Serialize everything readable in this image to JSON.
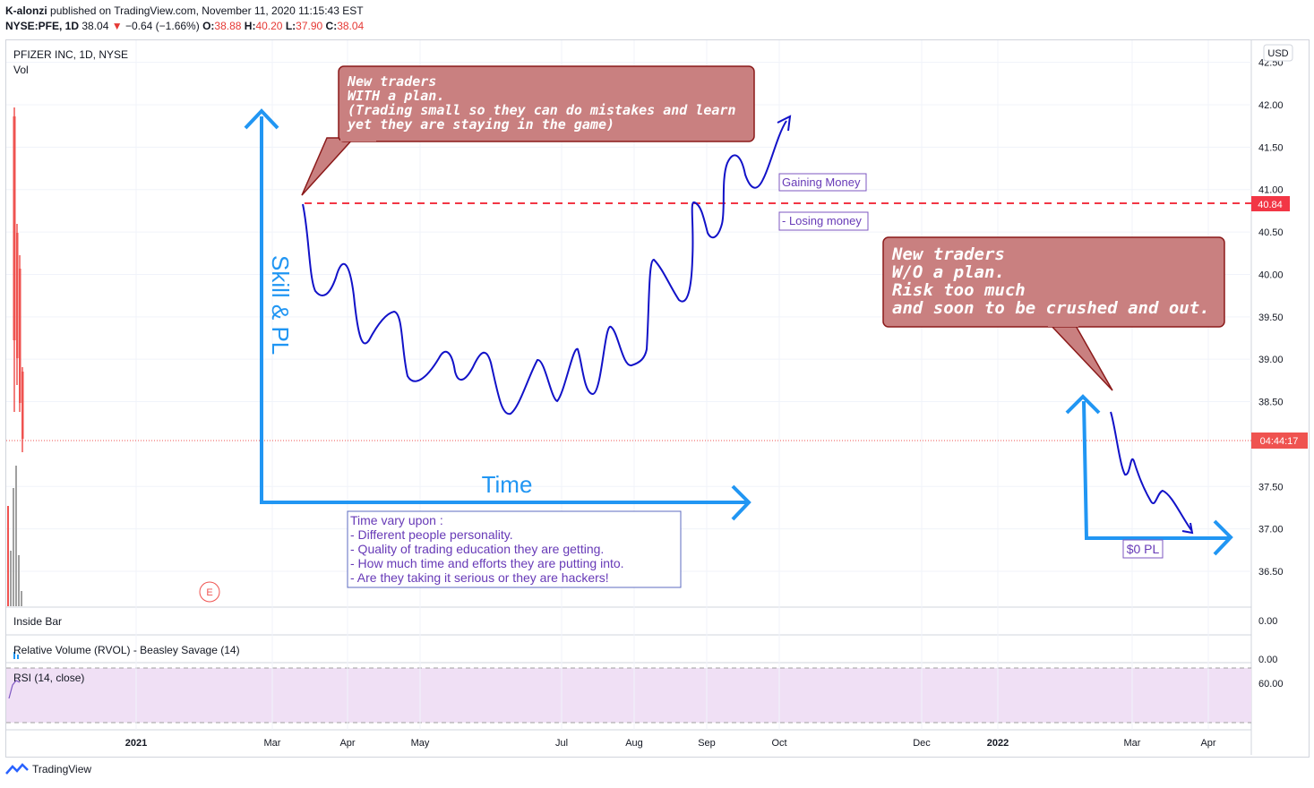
{
  "header": {
    "publisher": "K-alonzi",
    "published_text": "published on TradingView.com, November 11, 2020 11:15:43 EST",
    "symbol": "NYSE:PFE, 1D",
    "last": "38.04",
    "change": "−0.64 (−1.66%)",
    "o_label": "O:",
    "o": "38.88",
    "h_label": "H:",
    "h": "40.20",
    "l_label": "L:",
    "l": "37.90",
    "c_label": "C:",
    "c": "38.04"
  },
  "chart_data": {
    "type": "line",
    "title": "PFIZER INC, 1D, NYSE",
    "volume_label": "Vol",
    "currency": "USD",
    "y_ticks": [
      "42.50",
      "42.00",
      "41.50",
      "41.00",
      "40.50",
      "40.00",
      "39.50",
      "39.00",
      "38.50",
      "37.50",
      "37.00",
      "36.50"
    ],
    "x_ticks": [
      "2021",
      "Mar",
      "Apr",
      "May",
      "Jul",
      "Aug",
      "Sep",
      "Oct",
      "Dec",
      "2022",
      "Mar",
      "Apr"
    ],
    "price_line": "40.84",
    "countdown": "04:44:17",
    "earnings_marker": "E",
    "indicators": [
      {
        "name": "Inside Bar",
        "value": "0.00"
      },
      {
        "name": "Relative Volume (RVOL) - Beasley Savage (14)",
        "value": "0.00"
      },
      {
        "name": "RSI (14, close)",
        "value": "60.00"
      }
    ],
    "annotations": {
      "callout_plan": [
        "New traders",
        "WITH a plan.",
        "(Trading small so they can do mistakes and learn",
        "yet they are staying in the game)"
      ],
      "callout_noplan": [
        "New traders",
        "W/O a plan.",
        "Risk too much",
        "and soon to be crushed and out."
      ],
      "gaining": "Gaining Money",
      "losing": "- Losing money",
      "y_axis_label": "Skill & PL",
      "x_axis_label": "Time",
      "zero_pl": "$0 PL",
      "time_note": [
        "Time vary upon :",
        "- Different people personality.",
        "- Quality of trading education they are getting.",
        "- How much time and efforts they are putting into.",
        "- Are they taking it serious or they are hackers!"
      ]
    }
  },
  "footer": {
    "brand": "TradingView"
  },
  "colors": {
    "up": "#26a69a",
    "down": "#ef5350",
    "callout": "#c98080",
    "drawn_line": "#1212c8",
    "axis_arrow": "#2196f3",
    "text_purple": "#673ab7"
  }
}
